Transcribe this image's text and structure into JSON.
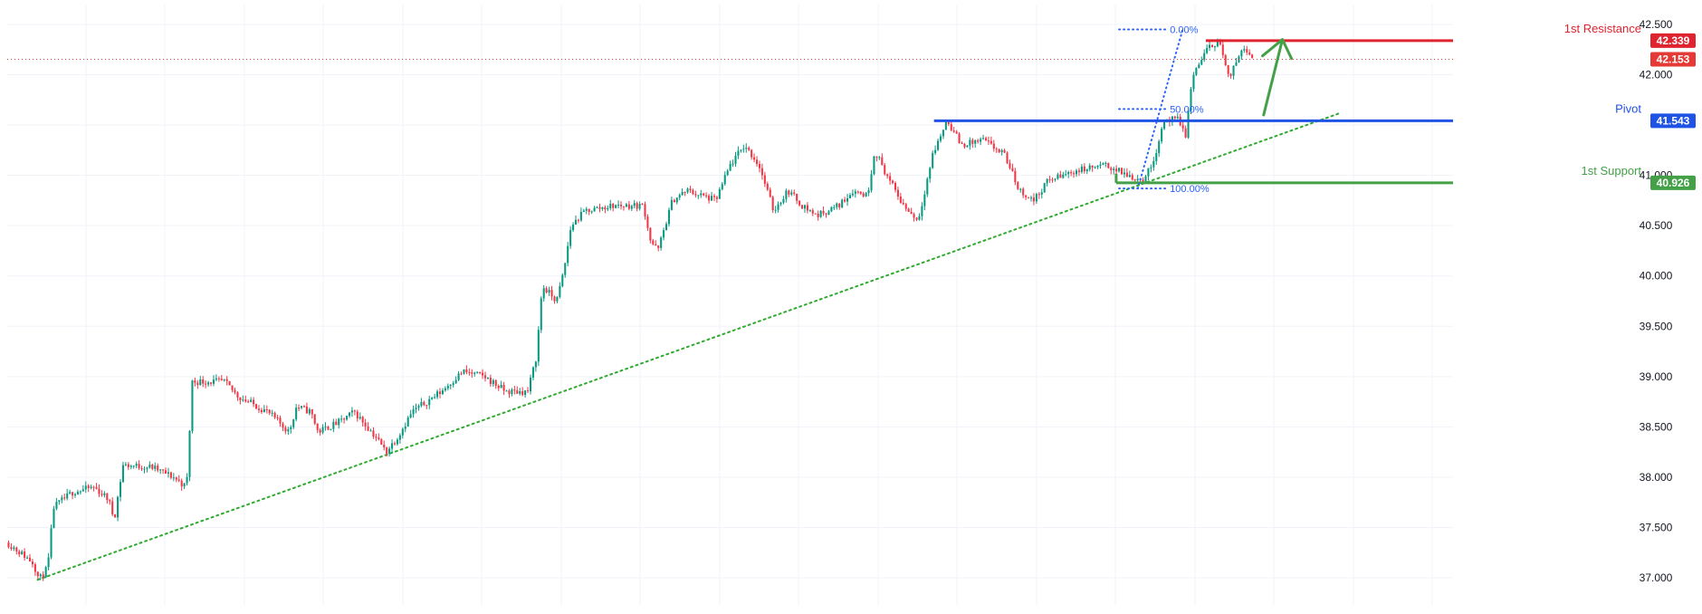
{
  "chart_data": {
    "type": "candlestick",
    "y_axis": {
      "ticks": [
        "42.500",
        "42.000",
        "41.000",
        "40.500",
        "40.000",
        "39.500",
        "39.000",
        "38.500",
        "38.000",
        "37.500",
        "37.000"
      ],
      "ylim": [
        36.95,
        42.55
      ],
      "position": "right"
    },
    "grid": true,
    "colors": {
      "up": "#089981",
      "down": "#f23645",
      "resistance": "#e0242f",
      "pivot": "#1e53e5",
      "support": "#43a047",
      "fib": "#2962ff",
      "trend": "#2eaa2e",
      "price_line": "#e53935"
    },
    "current_price": {
      "value": 42.153,
      "label": "42.153",
      "line_style": "dotted"
    },
    "levels": [
      {
        "name": "resistance",
        "label": "1st Resistance",
        "value": 42.339,
        "value_label": "42.339"
      },
      {
        "name": "pivot",
        "label": "Pivot",
        "value": 41.543,
        "value_label": "41.543"
      },
      {
        "name": "support",
        "label": "1st Support",
        "value": 40.926,
        "value_label": "40.926"
      }
    ],
    "fibonacci": [
      {
        "label": "0.00%",
        "value": 42.45
      },
      {
        "label": "50.00%",
        "value": 41.66
      },
      {
        "label": "100.00%",
        "value": 40.87
      }
    ],
    "trendline": {
      "from": [
        0.021,
        36.98
      ],
      "to": [
        0.922,
        41.62
      ],
      "style": "dotted"
    },
    "arrow": {
      "from": [
        0.869,
        41.6
      ],
      "to": [
        0.882,
        42.35
      ]
    },
    "anchors": [
      [
        0.0,
        37.35
      ],
      [
        0.018,
        37.15
      ],
      [
        0.022,
        36.98
      ],
      [
        0.028,
        37.1
      ],
      [
        0.032,
        37.7
      ],
      [
        0.045,
        37.85
      ],
      [
        0.06,
        37.9
      ],
      [
        0.07,
        37.78
      ],
      [
        0.074,
        37.58
      ],
      [
        0.08,
        38.12
      ],
      [
        0.1,
        38.1
      ],
      [
        0.115,
        38.0
      ],
      [
        0.124,
        37.9
      ],
      [
        0.128,
        38.95
      ],
      [
        0.15,
        38.95
      ],
      [
        0.16,
        38.8
      ],
      [
        0.18,
        38.65
      ],
      [
        0.195,
        38.45
      ],
      [
        0.2,
        38.7
      ],
      [
        0.21,
        38.65
      ],
      [
        0.215,
        38.45
      ],
      [
        0.23,
        38.55
      ],
      [
        0.24,
        38.65
      ],
      [
        0.255,
        38.4
      ],
      [
        0.262,
        38.25
      ],
      [
        0.27,
        38.4
      ],
      [
        0.28,
        38.65
      ],
      [
        0.3,
        38.85
      ],
      [
        0.315,
        39.05
      ],
      [
        0.33,
        39.0
      ],
      [
        0.345,
        38.85
      ],
      [
        0.36,
        38.85
      ],
      [
        0.366,
        39.2
      ],
      [
        0.37,
        39.9
      ],
      [
        0.38,
        39.75
      ],
      [
        0.385,
        40.05
      ],
      [
        0.39,
        40.5
      ],
      [
        0.4,
        40.65
      ],
      [
        0.42,
        40.7
      ],
      [
        0.44,
        40.7
      ],
      [
        0.445,
        40.35
      ],
      [
        0.45,
        40.25
      ],
      [
        0.46,
        40.75
      ],
      [
        0.47,
        40.85
      ],
      [
        0.49,
        40.75
      ],
      [
        0.5,
        41.1
      ],
      [
        0.51,
        41.3
      ],
      [
        0.52,
        41.1
      ],
      [
        0.53,
        40.65
      ],
      [
        0.54,
        40.85
      ],
      [
        0.55,
        40.7
      ],
      [
        0.56,
        40.6
      ],
      [
        0.575,
        40.7
      ],
      [
        0.585,
        40.85
      ],
      [
        0.595,
        40.8
      ],
      [
        0.6,
        41.25
      ],
      [
        0.61,
        40.95
      ],
      [
        0.62,
        40.7
      ],
      [
        0.63,
        40.55
      ],
      [
        0.64,
        41.2
      ],
      [
        0.65,
        41.55
      ],
      [
        0.66,
        41.3
      ],
      [
        0.675,
        41.35
      ],
      [
        0.69,
        41.2
      ],
      [
        0.7,
        40.85
      ],
      [
        0.71,
        40.75
      ],
      [
        0.72,
        40.95
      ],
      [
        0.74,
        41.05
      ],
      [
        0.76,
        41.1
      ],
      [
        0.775,
        41.0
      ],
      [
        0.785,
        40.95
      ],
      [
        0.792,
        41.1
      ],
      [
        0.8,
        41.55
      ],
      [
        0.81,
        41.55
      ],
      [
        0.815,
        41.4
      ],
      [
        0.82,
        42.0
      ],
      [
        0.83,
        42.25
      ],
      [
        0.838,
        42.35
      ],
      [
        0.845,
        41.95
      ],
      [
        0.855,
        42.3
      ],
      [
        0.862,
        42.15
      ]
    ]
  }
}
